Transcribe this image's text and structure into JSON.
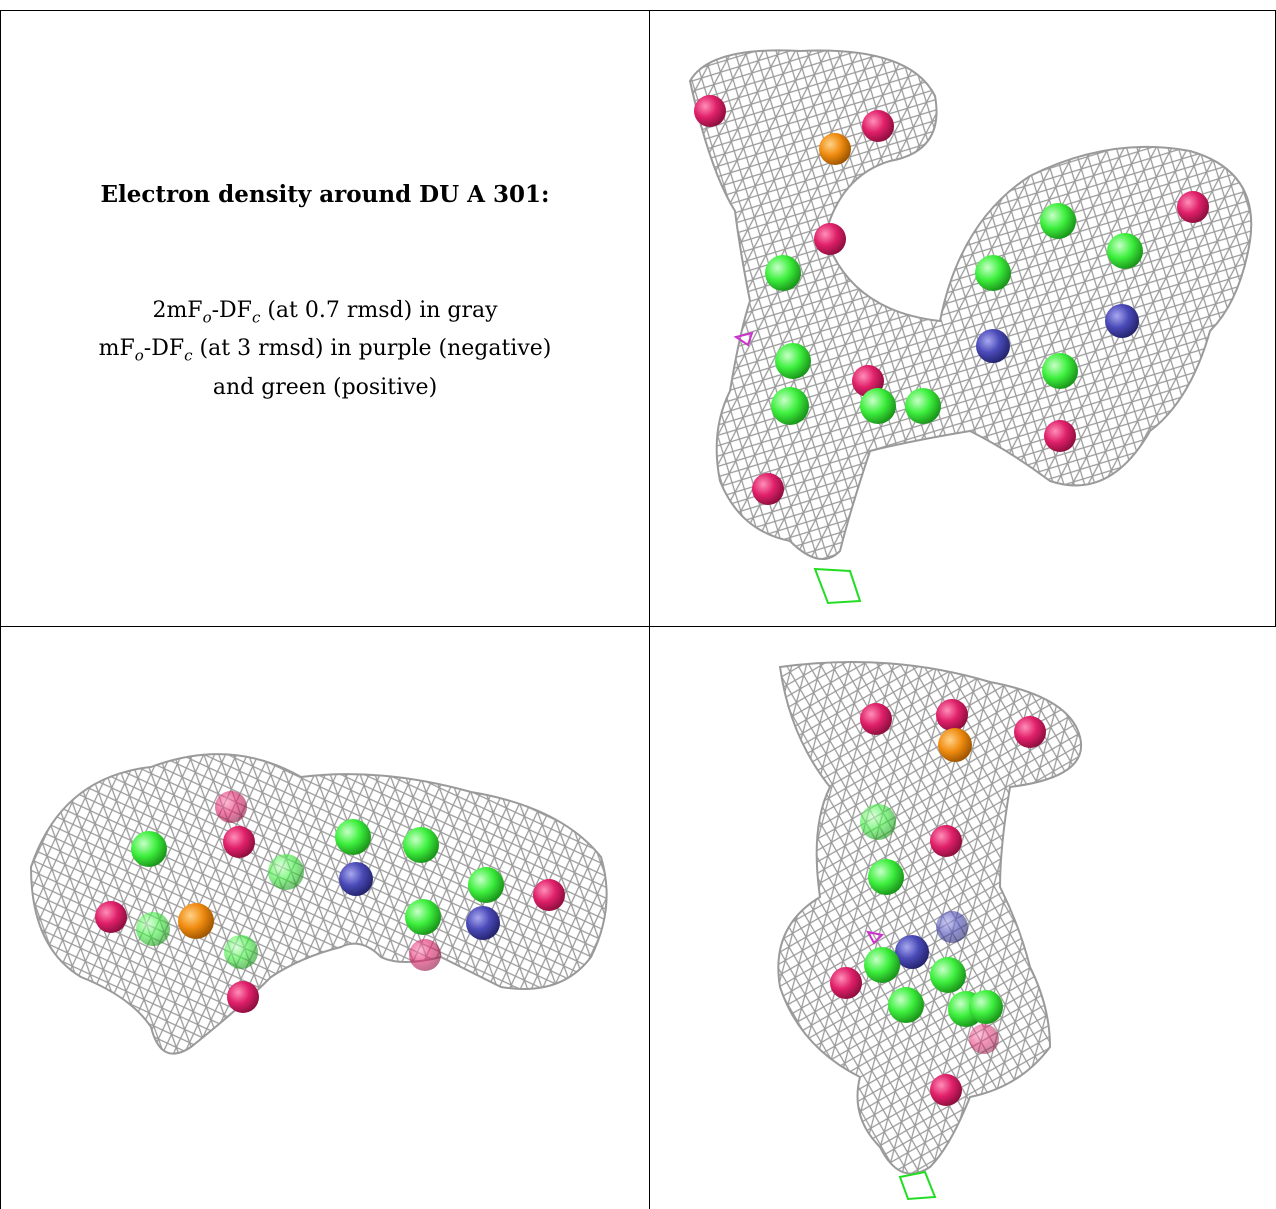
{
  "caption": {
    "title": "Electron density around DU A 301:",
    "line1_prefix": "2mF",
    "line1_sub1": "o",
    "line1_mid": "-DF",
    "line1_sub2": "c",
    "line1_suffix": " (at 0.7 rmsd) in gray",
    "line2_prefix": "mF",
    "line2_sub1": "o",
    "line2_mid": "-DF",
    "line2_sub2": "c",
    "line2_suffix": " (at 3 rmsd) in purple (negative)",
    "line3": "and green (positive)"
  },
  "colors": {
    "mesh": "#9a9a9a",
    "oxygen": "#e0206a",
    "carbon": "#3ef03e",
    "nitrogen": "#4a4ab8",
    "phosphorus": "#f08c10",
    "positive_density": "#22dd22",
    "negative_density": "#cc33cc",
    "border": "#000000"
  },
  "panels": [
    {
      "name": "view-top-right"
    },
    {
      "name": "view-bottom-left"
    },
    {
      "name": "view-bottom-right"
    }
  ]
}
